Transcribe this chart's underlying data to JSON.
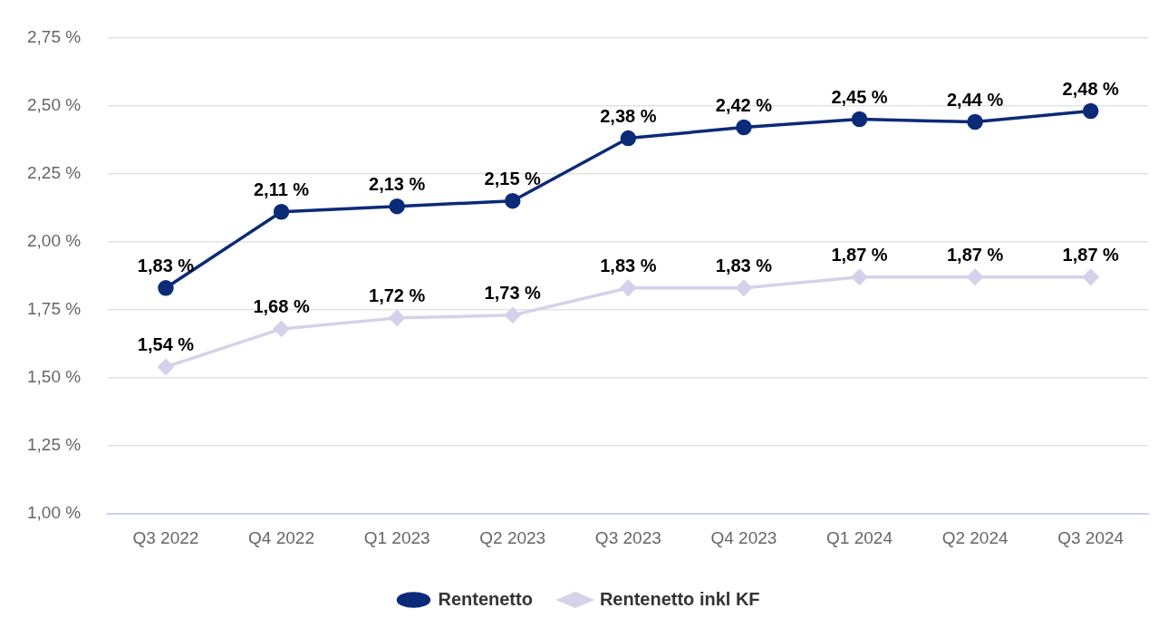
{
  "chart_data": {
    "type": "line",
    "categories": [
      "Q3 2022",
      "Q4 2022",
      "Q1 2023",
      "Q2 2023",
      "Q3 2023",
      "Q4 2023",
      "Q1 2024",
      "Q2 2024",
      "Q3 2024"
    ],
    "series": [
      {
        "name": "Rentenetto",
        "color": "#0b2a78",
        "marker": "circle",
        "values": [
          1.83,
          2.11,
          2.13,
          2.15,
          2.38,
          2.42,
          2.45,
          2.44,
          2.48
        ],
        "value_labels": [
          "1,83 %",
          "2,11 %",
          "2,13 %",
          "2,15 %",
          "2,38 %",
          "2,42 %",
          "2,45 %",
          "2,44 %",
          "2,48 %"
        ]
      },
      {
        "name": "Rentenetto inkl KF",
        "color": "#d3d2ea",
        "marker": "diamond",
        "values": [
          1.54,
          1.68,
          1.72,
          1.73,
          1.83,
          1.83,
          1.87,
          1.87,
          1.87
        ],
        "value_labels": [
          "1,54 %",
          "1,68 %",
          "1,72 %",
          "1,73 %",
          "1,83 %",
          "1,83 %",
          "1,87 %",
          "1,87 %",
          "1,87 %"
        ]
      }
    ],
    "ylim": [
      1.0,
      2.75
    ],
    "yticks": [
      {
        "value": 1.0,
        "label": "1,00 %"
      },
      {
        "value": 1.25,
        "label": "1,25 %"
      },
      {
        "value": 1.5,
        "label": "1,50 %"
      },
      {
        "value": 1.75,
        "label": "1,75 %"
      },
      {
        "value": 2.0,
        "label": "2,00 %"
      },
      {
        "value": 2.25,
        "label": "2,25 %"
      },
      {
        "value": 2.5,
        "label": "2,50 %"
      },
      {
        "value": 2.75,
        "label": "2,75 %"
      }
    ],
    "grid": "y",
    "legend": "bottom",
    "line_style": "solid"
  }
}
